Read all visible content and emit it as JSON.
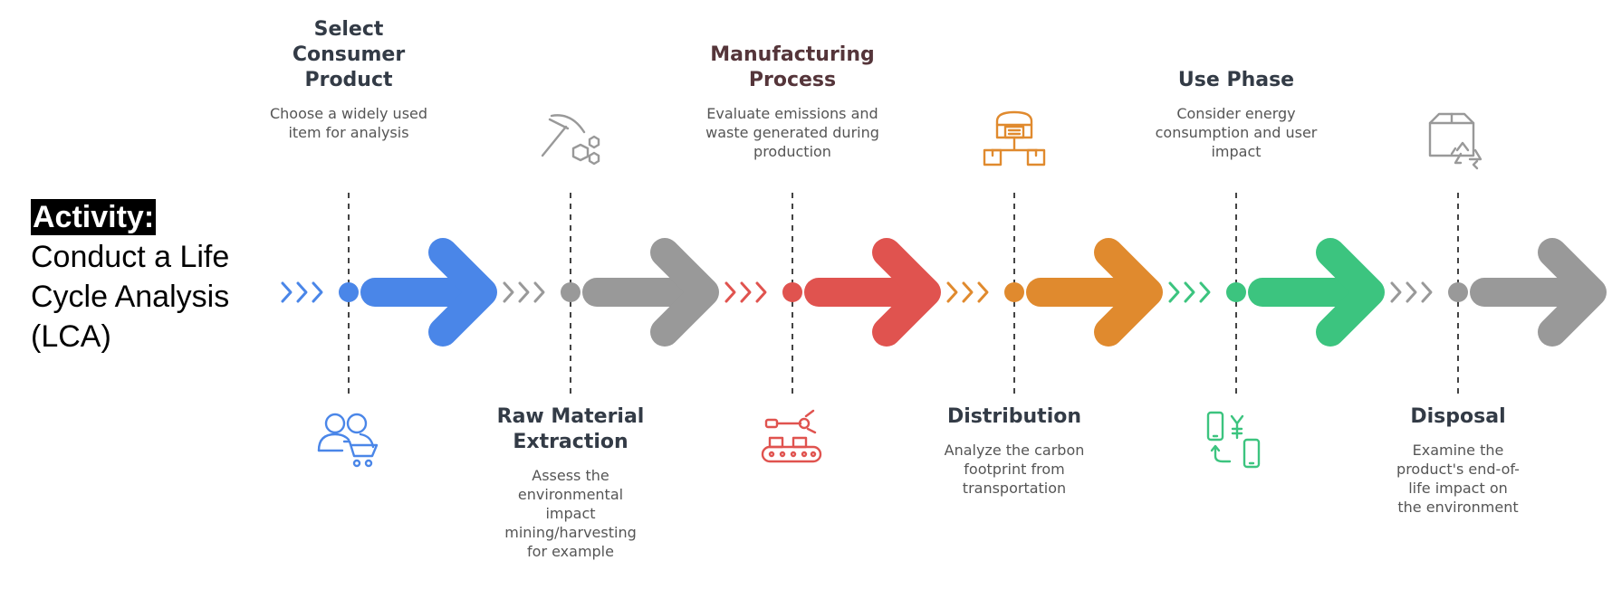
{
  "activity": {
    "label": "Activity:",
    "title": "Conduct a Life Cycle Analysis (LCA)"
  },
  "stages": [
    {
      "id": "select",
      "title": "Select Consumer Product",
      "description": "Choose a widely used item for analysis",
      "position": "top",
      "color": "#4a86e8",
      "icon": "users-cart-icon"
    },
    {
      "id": "raw",
      "title": "Raw Material Extraction",
      "description": "Assess the environmental impact mining/harvesting for example",
      "position": "bottom",
      "color": "#999999",
      "icon": "pickaxe-minerals-icon"
    },
    {
      "id": "manufacturing",
      "title": "Manufacturing Process",
      "description": "Evaluate emissions and waste generated during production",
      "position": "top",
      "color": "#e0534f",
      "icon": "robotic-arm-conveyor-icon"
    },
    {
      "id": "distribution",
      "title": "Distribution",
      "description": "Analyze the carbon footprint from transportation",
      "position": "bottom",
      "color": "#e08a2e",
      "icon": "warehouse-boxes-icon"
    },
    {
      "id": "use",
      "title": "Use Phase",
      "description": "Consider energy consumption and user impact",
      "position": "top",
      "color": "#3cc47f",
      "icon": "devices-exchange-icon"
    },
    {
      "id": "disposal",
      "title": "Disposal",
      "description": "Examine the product's end-of-life impact on the environment",
      "position": "bottom",
      "color": "#999999",
      "icon": "box-recycle-icon"
    }
  ]
}
